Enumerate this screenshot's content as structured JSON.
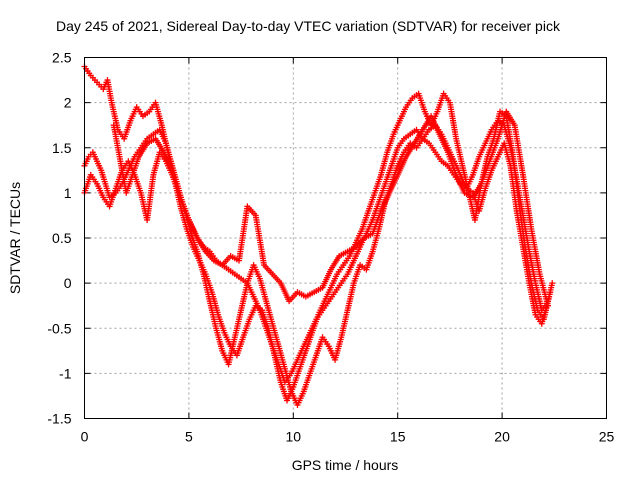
{
  "chart_data": {
    "type": "scatter",
    "title": "Day 245 of 2021, Sidereal Day-to-day VTEC variation (SDTVAR) for receiver pick",
    "xlabel": "GPS time / hours",
    "ylabel": "SDTVAR / TECUs",
    "xlim": [
      0,
      25
    ],
    "ylim": [
      -1.5,
      2.5
    ],
    "xticks": [
      0,
      5,
      10,
      15,
      20,
      25
    ],
    "yticks": [
      -1.5,
      -1,
      -0.5,
      0,
      0.5,
      1,
      1.5,
      2,
      2.5
    ],
    "xtick_labels": [
      "0",
      "5",
      "10",
      "15",
      "20",
      "25"
    ],
    "ytick_labels": [
      "-1.5",
      "-1",
      "-0.5",
      "0",
      "0.5",
      "1",
      "1.5",
      "2",
      "2.5"
    ],
    "grid": true,
    "marker": "plus",
    "color": "#ff0000",
    "series": [
      {
        "x": [
          0.0,
          0.2,
          0.4,
          0.6,
          0.8,
          1.0,
          1.2,
          1.5,
          1.8,
          2.1,
          2.4,
          2.7,
          3.0,
          3.3,
          3.6,
          3.9,
          4.2,
          4.5,
          4.8,
          5.1,
          5.4,
          5.7,
          6.0,
          6.3,
          6.6,
          6.9,
          7.2,
          7.5,
          7.8,
          8.1,
          8.4,
          8.7,
          9.0,
          9.3,
          9.6,
          9.9,
          10.2,
          10.5,
          10.8,
          11.1,
          11.4,
          11.7,
          12.0,
          12.3,
          12.6,
          12.9,
          13.2,
          13.5,
          13.8,
          14.1,
          14.4,
          14.7,
          15.0,
          15.3,
          15.6,
          15.9,
          16.2,
          16.5,
          16.8,
          17.1,
          17.4,
          17.7,
          18.0,
          18.3,
          18.6,
          18.9,
          19.2,
          19.5,
          19.8,
          20.1,
          20.4,
          20.7,
          21.0,
          21.3,
          21.6,
          21.9,
          22.2,
          22.4
        ],
        "y": [
          1.3,
          1.4,
          1.45,
          1.35,
          1.25,
          1.1,
          0.95,
          1.0,
          1.1,
          1.25,
          1.4,
          1.5,
          1.6,
          1.65,
          1.7,
          1.55,
          1.3,
          1.05,
          0.8,
          0.65,
          0.5,
          0.4,
          0.35,
          0.25,
          0.2,
          0.15,
          0.1,
          0.05,
          0.0,
          -0.15,
          -0.3,
          -0.5,
          -0.7,
          -0.9,
          -1.1,
          -1.0,
          -0.85,
          -0.7,
          -0.55,
          -0.4,
          -0.3,
          -0.2,
          -0.1,
          0.0,
          0.1,
          0.25,
          0.4,
          0.55,
          0.7,
          0.9,
          1.1,
          1.3,
          1.5,
          1.6,
          1.65,
          1.7,
          1.6,
          1.7,
          1.75,
          1.65,
          1.5,
          1.35,
          1.2,
          1.05,
          1.2,
          1.4,
          1.55,
          1.7,
          1.8,
          1.75,
          1.5,
          1.15,
          0.75,
          0.35,
          0.0,
          -0.3,
          -0.2,
          0.0
        ]
      },
      {
        "x": [
          0.0,
          0.15,
          0.3,
          0.5,
          0.7,
          0.9,
          1.1,
          1.3,
          1.6,
          1.9,
          2.2,
          2.5,
          2.8,
          3.1,
          3.4,
          3.7,
          4.0,
          4.3,
          4.6,
          4.9,
          5.2,
          5.5,
          5.8,
          6.1,
          6.4,
          6.7,
          7.0,
          7.3,
          7.6,
          7.9,
          8.2,
          8.5,
          8.8,
          9.1,
          9.4,
          9.7,
          10.0,
          10.3,
          10.6,
          10.9,
          11.2,
          11.5,
          11.8,
          12.1,
          12.4,
          12.7,
          13.0,
          13.3,
          13.6,
          13.9,
          14.2,
          14.5,
          14.8,
          15.1,
          15.4,
          15.7,
          16.0,
          16.3,
          16.6,
          16.9,
          17.2,
          17.5,
          17.8,
          18.1,
          18.4,
          18.7,
          19.0,
          19.3,
          19.6,
          19.9,
          20.2,
          20.5,
          20.8,
          21.1,
          21.4,
          21.7,
          22.0,
          22.3
        ],
        "y": [
          2.4,
          2.35,
          2.3,
          2.25,
          2.2,
          2.15,
          2.25,
          2.0,
          1.7,
          1.6,
          1.8,
          1.95,
          1.85,
          1.9,
          2.0,
          1.75,
          1.45,
          1.15,
          0.85,
          0.6,
          0.4,
          0.25,
          0.1,
          -0.1,
          -0.35,
          -0.55,
          -0.7,
          -0.8,
          -0.6,
          -0.4,
          -0.25,
          -0.3,
          -0.5,
          -0.8,
          -1.1,
          -1.3,
          -1.15,
          -0.95,
          -0.75,
          -0.55,
          -0.35,
          -0.2,
          -0.05,
          0.1,
          0.2,
          0.3,
          0.45,
          0.6,
          0.8,
          1.0,
          1.2,
          1.45,
          1.65,
          1.8,
          1.95,
          2.05,
          2.1,
          1.9,
          1.75,
          1.9,
          2.1,
          2.0,
          1.6,
          1.3,
          1.0,
          0.7,
          1.1,
          1.4,
          1.6,
          1.9,
          1.85,
          1.45,
          0.9,
          0.4,
          0.0,
          -0.3,
          -0.4,
          -0.1
        ]
      },
      {
        "x": [
          0.0,
          0.3,
          0.6,
          0.9,
          1.2,
          1.5,
          1.8,
          2.1,
          2.4,
          2.7,
          3.0,
          3.3,
          3.6,
          3.9,
          4.2,
          4.5,
          4.8,
          5.1,
          5.4,
          5.7,
          6.0,
          6.3,
          6.6,
          6.9,
          7.2,
          7.5,
          7.8,
          8.1,
          8.4,
          8.7,
          9.0,
          9.3,
          9.6,
          9.9,
          10.2,
          10.5,
          10.8,
          11.1,
          11.4,
          11.7,
          12.0,
          12.3,
          12.6,
          12.9,
          13.2,
          13.5,
          13.8,
          14.1,
          14.4,
          14.7,
          15.0,
          15.3,
          15.6,
          15.9,
          16.2,
          16.5,
          16.8,
          17.1,
          17.4,
          17.7,
          18.0,
          18.3,
          18.6,
          18.9,
          19.2,
          19.5,
          19.8,
          20.1,
          20.4,
          20.7,
          21.0,
          21.3,
          21.6,
          21.9,
          22.2
        ],
        "y": [
          1.0,
          1.2,
          1.1,
          0.95,
          0.85,
          1.05,
          1.25,
          1.35,
          1.2,
          1.0,
          0.7,
          1.2,
          1.45,
          1.35,
          1.2,
          1.0,
          0.8,
          0.55,
          0.35,
          0.1,
          -0.2,
          -0.5,
          -0.75,
          -0.9,
          -0.6,
          -0.3,
          0.0,
          0.2,
          0.05,
          -0.2,
          -0.45,
          -0.7,
          -0.95,
          -1.2,
          -1.35,
          -1.2,
          -1.0,
          -0.8,
          -0.6,
          -0.7,
          -0.85,
          -0.6,
          -0.3,
          0.0,
          0.2,
          0.15,
          0.35,
          0.6,
          0.9,
          1.1,
          1.3,
          1.45,
          1.55,
          1.5,
          1.6,
          1.55,
          1.45,
          1.35,
          1.3,
          1.2,
          1.1,
          1.05,
          1.0,
          0.8,
          1.05,
          1.25,
          1.4,
          1.55,
          1.3,
          0.8,
          0.4,
          0.0,
          -0.35,
          -0.45,
          -0.2
        ]
      },
      {
        "x": [
          1.4,
          1.6,
          1.8,
          2.0,
          2.3,
          2.6,
          3.0,
          3.4,
          3.8,
          4.2,
          4.6,
          5.0,
          5.4,
          5.8,
          6.2,
          6.6,
          7.0,
          7.4,
          7.8,
          8.2,
          8.6,
          9.0,
          9.4,
          9.8,
          10.2,
          10.6,
          11.0,
          11.4,
          11.8,
          12.2,
          12.6,
          13.0,
          13.4,
          13.8,
          14.2,
          14.6,
          15.0,
          15.4,
          15.8,
          16.2,
          16.6,
          17.0,
          17.4,
          17.8,
          18.2,
          18.6,
          19.0,
          19.4,
          19.8,
          20.2,
          20.6,
          21.0,
          21.4,
          21.8,
          22.2
        ],
        "y": [
          1.75,
          1.5,
          1.25,
          1.0,
          1.2,
          1.4,
          1.55,
          1.6,
          1.45,
          1.25,
          0.95,
          0.7,
          0.5,
          0.35,
          0.25,
          0.2,
          0.3,
          0.25,
          0.85,
          0.75,
          0.2,
          0.1,
          0.0,
          -0.2,
          -0.1,
          -0.15,
          -0.1,
          -0.05,
          0.15,
          0.3,
          0.35,
          0.4,
          0.5,
          0.55,
          0.8,
          1.0,
          1.2,
          1.4,
          1.55,
          1.7,
          1.85,
          1.65,
          1.45,
          1.2,
          1.0,
          0.95,
          1.1,
          1.35,
          1.6,
          1.9,
          1.75,
          1.2,
          0.6,
          0.1,
          -0.25
        ]
      }
    ]
  }
}
